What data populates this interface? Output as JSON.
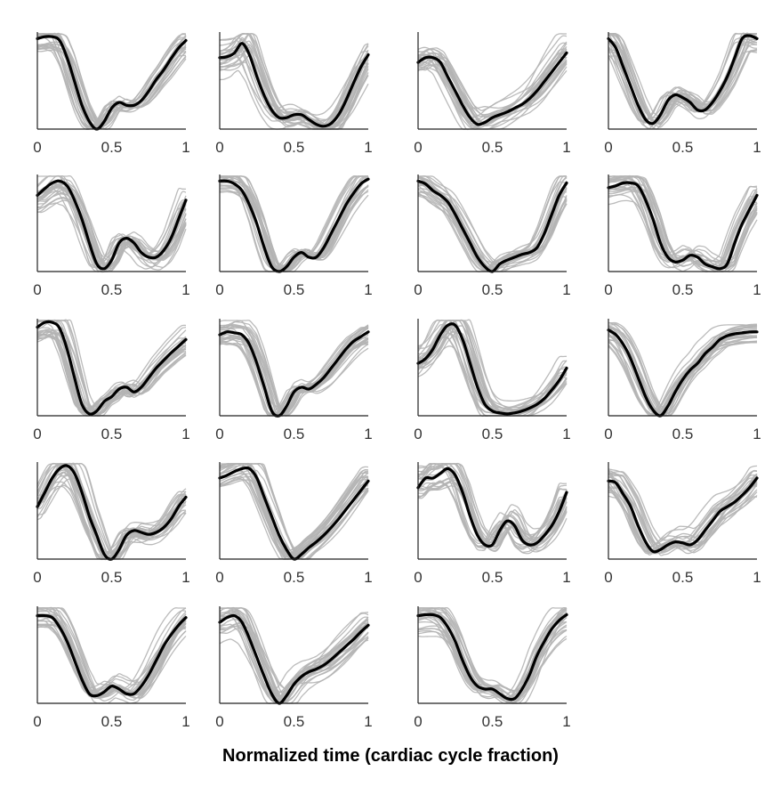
{
  "figure": {
    "xlabel": "Normalized time (cardiac cycle fraction)"
  },
  "chart_data": {
    "type": "line",
    "layout": "small multiples, 5 rows x 4 columns, 19 panels",
    "xlabel": "Normalized time (cardiac cycle fraction)",
    "xlim": [
      0,
      1
    ],
    "ylim": [
      0,
      1
    ],
    "x_ticks": [
      "0",
      "0.5",
      "1"
    ],
    "show_y_axis_labels": false,
    "grid": false,
    "colors": {
      "mean_line": "#000000",
      "individual_lines": "#b4b4b4",
      "axis": "#222222"
    },
    "individual_traces_per_panel": 25,
    "x": [
      0,
      0.05,
      0.1,
      0.15,
      0.2,
      0.25,
      0.3,
      0.35,
      0.4,
      0.45,
      0.5,
      0.55,
      0.6,
      0.65,
      0.7,
      0.75,
      0.8,
      0.85,
      0.9,
      0.95,
      1
    ],
    "panels": [
      {
        "row": 1,
        "col": 1,
        "mean": [
          0.95,
          0.97,
          0.97,
          0.93,
          0.75,
          0.5,
          0.25,
          0.08,
          0.0,
          0.08,
          0.22,
          0.28,
          0.25,
          0.25,
          0.3,
          0.4,
          0.52,
          0.62,
          0.74,
          0.85,
          0.93
        ],
        "spread": 0.12
      },
      {
        "row": 1,
        "col": 2,
        "mean": [
          0.75,
          0.76,
          0.8,
          0.9,
          0.78,
          0.55,
          0.35,
          0.2,
          0.12,
          0.12,
          0.15,
          0.15,
          0.1,
          0.05,
          0.03,
          0.06,
          0.15,
          0.3,
          0.48,
          0.65,
          0.78
        ],
        "spread": 0.3
      },
      {
        "row": 1,
        "col": 3,
        "mean": [
          0.7,
          0.75,
          0.75,
          0.7,
          0.55,
          0.4,
          0.25,
          0.12,
          0.05,
          0.07,
          0.12,
          0.15,
          0.18,
          0.22,
          0.26,
          0.32,
          0.4,
          0.5,
          0.6,
          0.7,
          0.8
        ],
        "spread": 0.35
      },
      {
        "row": 1,
        "col": 4,
        "mean": [
          0.95,
          0.85,
          0.65,
          0.45,
          0.25,
          0.1,
          0.06,
          0.15,
          0.3,
          0.36,
          0.33,
          0.28,
          0.2,
          0.2,
          0.28,
          0.4,
          0.55,
          0.75,
          0.95,
          0.98,
          0.95
        ],
        "spread": 0.2
      },
      {
        "row": 2,
        "col": 1,
        "mean": [
          0.8,
          0.87,
          0.93,
          0.95,
          0.9,
          0.75,
          0.55,
          0.3,
          0.08,
          0.03,
          0.12,
          0.3,
          0.35,
          0.3,
          0.2,
          0.15,
          0.15,
          0.22,
          0.35,
          0.55,
          0.75
        ],
        "spread": 0.25
      },
      {
        "row": 2,
        "col": 2,
        "mean": [
          0.95,
          0.95,
          0.92,
          0.85,
          0.7,
          0.5,
          0.25,
          0.05,
          0.0,
          0.05,
          0.15,
          0.2,
          0.15,
          0.15,
          0.25,
          0.4,
          0.55,
          0.7,
          0.82,
          0.92,
          0.97
        ],
        "spread": 0.15
      },
      {
        "row": 2,
        "col": 3,
        "mean": [
          0.95,
          0.92,
          0.85,
          0.8,
          0.73,
          0.6,
          0.45,
          0.3,
          0.15,
          0.05,
          0.0,
          0.08,
          0.12,
          0.15,
          0.18,
          0.2,
          0.25,
          0.4,
          0.6,
          0.8,
          0.93
        ],
        "spread": 0.2
      },
      {
        "row": 2,
        "col": 4,
        "mean": [
          0.88,
          0.9,
          0.93,
          0.93,
          0.9,
          0.75,
          0.55,
          0.3,
          0.15,
          0.1,
          0.12,
          0.17,
          0.15,
          0.08,
          0.05,
          0.03,
          0.08,
          0.3,
          0.5,
          0.65,
          0.8
        ],
        "spread": 0.25
      },
      {
        "row": 3,
        "col": 1,
        "mean": [
          0.93,
          0.98,
          0.98,
          0.92,
          0.7,
          0.4,
          0.12,
          0.02,
          0.05,
          0.15,
          0.2,
          0.28,
          0.3,
          0.25,
          0.3,
          0.4,
          0.5,
          0.58,
          0.66,
          0.73,
          0.8
        ],
        "spread": 0.15
      },
      {
        "row": 3,
        "col": 2,
        "mean": [
          0.85,
          0.88,
          0.87,
          0.85,
          0.75,
          0.55,
          0.3,
          0.05,
          0.0,
          0.1,
          0.25,
          0.3,
          0.28,
          0.33,
          0.4,
          0.5,
          0.6,
          0.7,
          0.78,
          0.83,
          0.88
        ],
        "spread": 0.2
      },
      {
        "row": 3,
        "col": 3,
        "mean": [
          0.55,
          0.6,
          0.7,
          0.85,
          0.95,
          0.95,
          0.8,
          0.55,
          0.3,
          0.12,
          0.05,
          0.03,
          0.02,
          0.03,
          0.05,
          0.08,
          0.12,
          0.18,
          0.27,
          0.37,
          0.5
        ],
        "spread": 0.3
      },
      {
        "row": 3,
        "col": 4,
        "mean": [
          0.9,
          0.85,
          0.75,
          0.6,
          0.4,
          0.2,
          0.06,
          0.0,
          0.1,
          0.25,
          0.38,
          0.48,
          0.55,
          0.65,
          0.72,
          0.8,
          0.84,
          0.86,
          0.87,
          0.88,
          0.88
        ],
        "spread": 0.15
      },
      {
        "row": 4,
        "col": 1,
        "mean": [
          0.55,
          0.7,
          0.85,
          0.95,
          0.98,
          0.9,
          0.7,
          0.45,
          0.25,
          0.05,
          0.0,
          0.1,
          0.25,
          0.3,
          0.28,
          0.26,
          0.28,
          0.33,
          0.42,
          0.55,
          0.65
        ],
        "spread": 0.25
      },
      {
        "row": 4,
        "col": 2,
        "mean": [
          0.85,
          0.88,
          0.92,
          0.95,
          0.95,
          0.85,
          0.65,
          0.45,
          0.25,
          0.1,
          0.0,
          0.05,
          0.12,
          0.18,
          0.25,
          0.33,
          0.42,
          0.52,
          0.62,
          0.72,
          0.82
        ],
        "spread": 0.2
      },
      {
        "row": 4,
        "col": 3,
        "mean": [
          0.75,
          0.85,
          0.85,
          0.9,
          0.95,
          0.88,
          0.7,
          0.45,
          0.25,
          0.15,
          0.15,
          0.3,
          0.4,
          0.35,
          0.2,
          0.15,
          0.17,
          0.25,
          0.35,
          0.5,
          0.7
        ],
        "spread": 0.3
      },
      {
        "row": 4,
        "col": 4,
        "mean": [
          0.82,
          0.8,
          0.68,
          0.55,
          0.35,
          0.18,
          0.08,
          0.1,
          0.15,
          0.18,
          0.17,
          0.15,
          0.2,
          0.3,
          0.4,
          0.5,
          0.55,
          0.6,
          0.67,
          0.75,
          0.85
        ],
        "spread": 0.35
      },
      {
        "row": 5,
        "col": 1,
        "mean": [
          0.92,
          0.92,
          0.9,
          0.8,
          0.65,
          0.45,
          0.25,
          0.1,
          0.08,
          0.12,
          0.18,
          0.15,
          0.1,
          0.1,
          0.18,
          0.3,
          0.45,
          0.6,
          0.72,
          0.82,
          0.9
        ],
        "spread": 0.3
      },
      {
        "row": 5,
        "col": 2,
        "mean": [
          0.85,
          0.9,
          0.92,
          0.85,
          0.68,
          0.48,
          0.28,
          0.1,
          0.0,
          0.08,
          0.2,
          0.28,
          0.33,
          0.36,
          0.4,
          0.46,
          0.53,
          0.6,
          0.67,
          0.75,
          0.82
        ],
        "spread": 0.3
      },
      {
        "row": 5,
        "col": 3,
        "mean": [
          0.92,
          0.93,
          0.93,
          0.9,
          0.8,
          0.65,
          0.45,
          0.28,
          0.18,
          0.15,
          0.15,
          0.1,
          0.05,
          0.05,
          0.15,
          0.3,
          0.5,
          0.65,
          0.78,
          0.87,
          0.93
        ],
        "spread": 0.3
      }
    ]
  }
}
